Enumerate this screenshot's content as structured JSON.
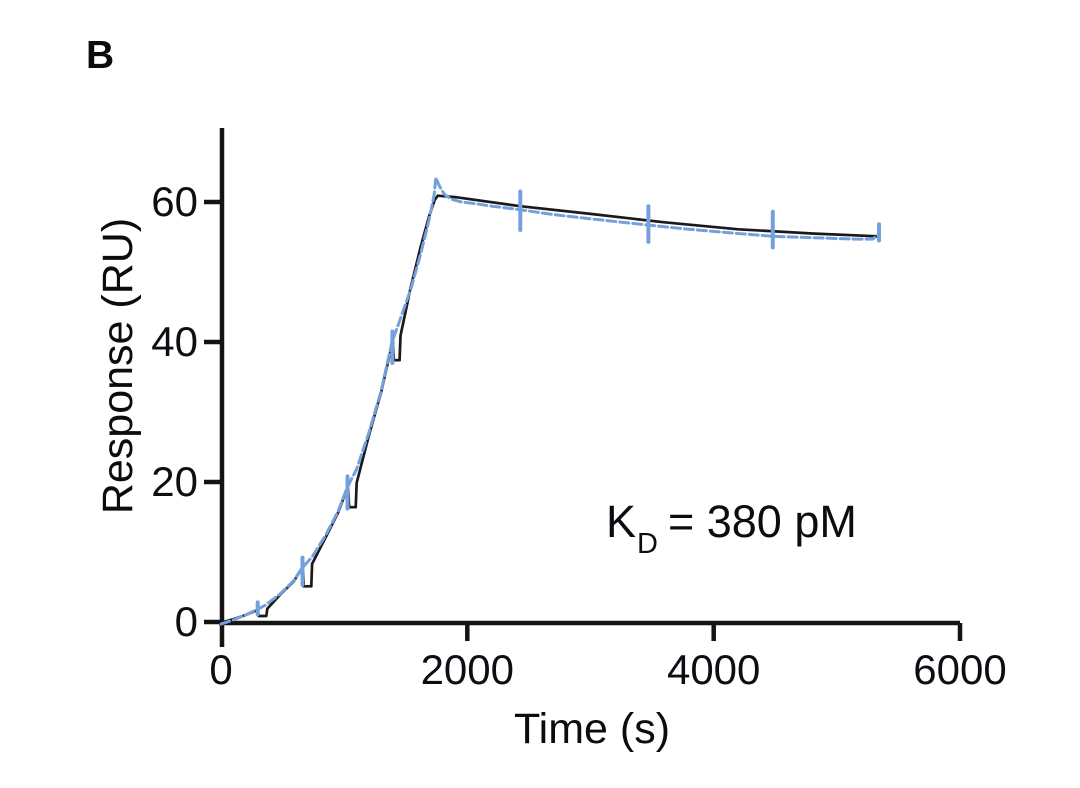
{
  "panel_label": "B",
  "annotation": {
    "symbol": "K",
    "subscript": "D",
    "value": "= 380 pM"
  },
  "colors": {
    "background": "#FFFFFF",
    "measured_curve": "#74A1DC",
    "fit_curve": "#1A1A1A",
    "axis": "#141414",
    "text": "#0A0C10"
  },
  "chart_data": {
    "type": "line",
    "title": "",
    "xlabel": "Time (s)",
    "ylabel": "Response (RU)",
    "xlim": [
      0,
      6000
    ],
    "ylim": [
      0,
      70
    ],
    "x_ticks": [
      0,
      2000,
      4000,
      6000
    ],
    "y_ticks": [
      0,
      20,
      40,
      60
    ],
    "grid": false,
    "legend": null,
    "annotation_text": "KD = 380 pM",
    "description": "Single-cycle kinetics SPR sensorgram: five analyte injections (~350 s each) rising stepwise to ~61 RU, then slow dissociation to ~55 RU over ~5400 s; blue = measured data, black = kinetic fit",
    "series": [
      {
        "name": "fit",
        "color": "#1A1A1A",
        "style": "solid",
        "points": [
          [
            0,
            -0.1
          ],
          [
            100,
            0.4
          ],
          [
            200,
            1.0
          ],
          [
            298,
            1.7
          ],
          [
            306,
            0.85
          ],
          [
            368,
            0.85
          ],
          [
            376,
            1.9
          ],
          [
            480,
            3.9
          ],
          [
            590,
            5.8
          ],
          [
            665,
            7.9
          ],
          [
            672,
            5.1
          ],
          [
            733,
            5.1
          ],
          [
            740,
            8.3
          ],
          [
            850,
            12.1
          ],
          [
            950,
            15.6
          ],
          [
            1032,
            19.4
          ],
          [
            1040,
            16.4
          ],
          [
            1094,
            16.4
          ],
          [
            1102,
            19.9
          ],
          [
            1200,
            26.6
          ],
          [
            1300,
            32.8
          ],
          [
            1396,
            40.2
          ],
          [
            1403,
            37.4
          ],
          [
            1450,
            37.4
          ],
          [
            1457,
            40.9
          ],
          [
            1540,
            47.8
          ],
          [
            1620,
            53.5
          ],
          [
            1690,
            58.0
          ],
          [
            1735,
            60.3
          ],
          [
            1760,
            60.9
          ],
          [
            1900,
            60.7
          ],
          [
            2430,
            59.4
          ],
          [
            3000,
            58.3
          ],
          [
            3600,
            57.1
          ],
          [
            4200,
            56.1
          ],
          [
            4800,
            55.5
          ],
          [
            5330,
            55.1
          ]
        ]
      },
      {
        "name": "measured",
        "color": "#74A1DC",
        "style": "dashed",
        "points": [
          [
            0,
            -0.3
          ],
          [
            100,
            0.3
          ],
          [
            200,
            1.0
          ],
          [
            295,
            1.8
          ],
          [
            360,
            2.4
          ],
          [
            480,
            4.0
          ],
          [
            590,
            5.9
          ],
          [
            658,
            7.7
          ],
          [
            740,
            9.3
          ],
          [
            850,
            12.4
          ],
          [
            950,
            15.8
          ],
          [
            1025,
            19.2
          ],
          [
            1100,
            21.8
          ],
          [
            1200,
            27.0
          ],
          [
            1300,
            33.0
          ],
          [
            1388,
            40.0
          ],
          [
            1450,
            43.0
          ],
          [
            1540,
            47.5
          ],
          [
            1620,
            52.5
          ],
          [
            1690,
            57.5
          ],
          [
            1730,
            61.0
          ],
          [
            1745,
            63.5
          ],
          [
            1765,
            62.6
          ],
          [
            1790,
            61.7
          ],
          [
            1820,
            61.0
          ],
          [
            1870,
            60.4
          ],
          [
            1950,
            60.0
          ],
          [
            2050,
            59.8
          ],
          [
            2200,
            59.4
          ],
          [
            2430,
            58.9
          ],
          [
            2700,
            58.2
          ],
          [
            3000,
            57.6
          ],
          [
            3470,
            56.7
          ],
          [
            3800,
            56.1
          ],
          [
            4200,
            55.5
          ],
          [
            4480,
            55.1
          ],
          [
            4800,
            54.9
          ],
          [
            5150,
            54.7
          ],
          [
            5290,
            54.7
          ],
          [
            5345,
            55.4
          ]
        ]
      }
    ],
    "spikes": [
      [
        298,
        1.1,
        2.8
      ],
      [
        662,
        5.3,
        9.2
      ],
      [
        1027,
        16.2,
        20.8
      ],
      [
        1392,
        37.0,
        41.5
      ],
      [
        2430,
        56.0,
        61.5
      ],
      [
        3470,
        54.3,
        59.4
      ],
      [
        4480,
        53.5,
        58.6
      ],
      [
        5342,
        54.5,
        56.8
      ]
    ]
  }
}
